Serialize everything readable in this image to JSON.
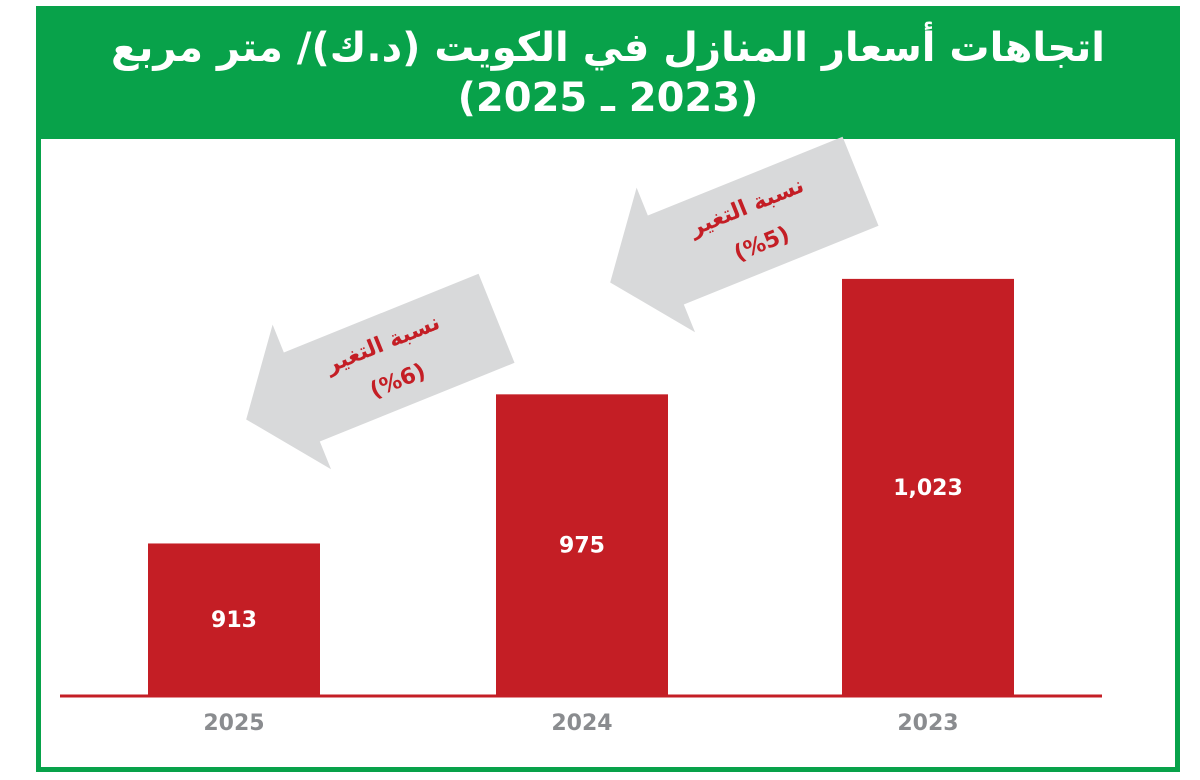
{
  "title_line1": "اتجاهات أسعار المنازل في الكويت (د.ك)/ متر مربع",
  "title_line2": "(2023 ـ 2025)",
  "colors": {
    "header": "#08a24a",
    "bar": "#c41e25",
    "arrow": "#d8d9da",
    "axis": "#c41e25",
    "year_label": "#8a8c8f"
  },
  "chart_data": {
    "type": "bar",
    "categories": [
      "2025",
      "2024",
      "2023"
    ],
    "values": [
      913,
      975,
      1023
    ],
    "value_labels": [
      "913",
      "975",
      "1,023"
    ],
    "ylim": [
      850,
      1040
    ],
    "annotations": [
      {
        "from": "2023",
        "to": "2024",
        "label": "نسبة التغير",
        "value": "(%5)"
      },
      {
        "from": "2024",
        "to": "2025",
        "label": "نسبة التغير",
        "value": "(%6)"
      }
    ]
  }
}
